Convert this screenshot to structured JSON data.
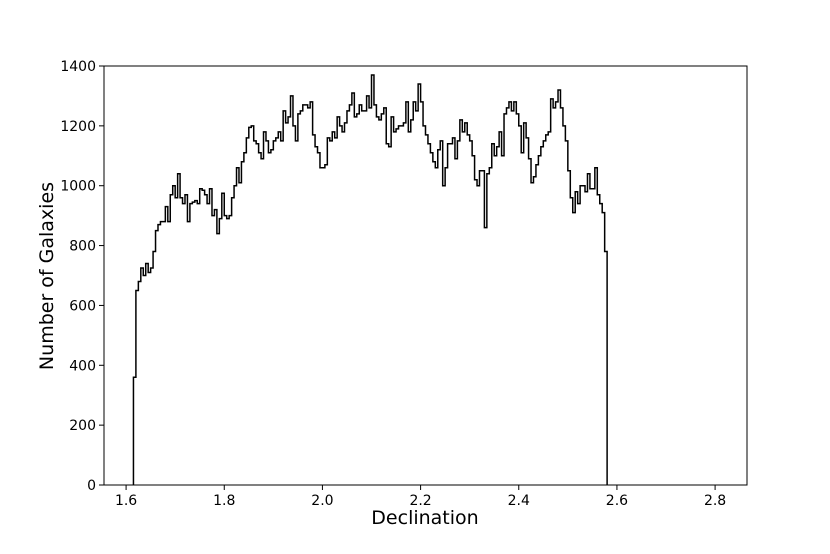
{
  "chart_data": {
    "type": "histogram",
    "title": "",
    "xlabel": "Declination",
    "ylabel": "Number of Galaxies",
    "xlim": [
      1.555,
      2.865
    ],
    "ylim": [
      0,
      1400
    ],
    "xticks": [
      1.6,
      1.8,
      2.0,
      2.2,
      2.4,
      2.6,
      2.8
    ],
    "xtick_labels": [
      "1.6",
      "1.8",
      "2.0",
      "2.2",
      "2.4",
      "2.6",
      "2.8"
    ],
    "yticks": [
      0,
      200,
      400,
      600,
      800,
      1000,
      1200,
      1400
    ],
    "ytick_labels": [
      "0",
      "200",
      "400",
      "600",
      "800",
      "1000",
      "1200",
      "1400"
    ],
    "grid": false,
    "legend": "none",
    "color": "#000000",
    "bin_start": 1.615,
    "bin_width": 0.005,
    "counts": [
      360,
      650,
      680,
      725,
      700,
      740,
      710,
      725,
      780,
      850,
      870,
      880,
      880,
      930,
      880,
      970,
      1000,
      960,
      1040,
      960,
      940,
      970,
      880,
      940,
      945,
      950,
      940,
      990,
      985,
      970,
      940,
      990,
      900,
      920,
      840,
      890,
      975,
      900,
      890,
      900,
      960,
      1000,
      1060,
      1010,
      1080,
      1110,
      1160,
      1195,
      1200,
      1150,
      1140,
      1110,
      1090,
      1180,
      1150,
      1110,
      1120,
      1150,
      1160,
      1180,
      1150,
      1250,
      1210,
      1230,
      1300,
      1200,
      1150,
      1240,
      1250,
      1270,
      1270,
      1260,
      1280,
      1170,
      1130,
      1110,
      1060,
      1060,
      1070,
      1160,
      1150,
      1180,
      1160,
      1230,
      1200,
      1180,
      1210,
      1250,
      1270,
      1310,
      1230,
      1240,
      1270,
      1250,
      1250,
      1300,
      1260,
      1370,
      1270,
      1230,
      1220,
      1240,
      1260,
      1140,
      1130,
      1230,
      1180,
      1190,
      1200,
      1200,
      1210,
      1280,
      1180,
      1220,
      1280,
      1250,
      1340,
      1280,
      1200,
      1170,
      1140,
      1110,
      1080,
      1060,
      1120,
      1150,
      1000,
      1060,
      1140,
      1140,
      1160,
      1090,
      1150,
      1220,
      1180,
      1210,
      1170,
      1150,
      1100,
      1020,
      1000,
      1050,
      1050,
      860,
      1040,
      1060,
      1140,
      1100,
      1130,
      1180,
      1100,
      1240,
      1260,
      1280,
      1250,
      1280,
      1240,
      1200,
      1110,
      1210,
      1160,
      1090,
      1010,
      1030,
      1070,
      1100,
      1130,
      1150,
      1170,
      1180,
      1290,
      1260,
      1280,
      1320,
      1260,
      1200,
      1150,
      1050,
      960,
      910,
      980,
      940,
      1000,
      1000,
      980,
      1040,
      990,
      990,
      1060,
      970,
      940,
      910,
      780
    ]
  }
}
